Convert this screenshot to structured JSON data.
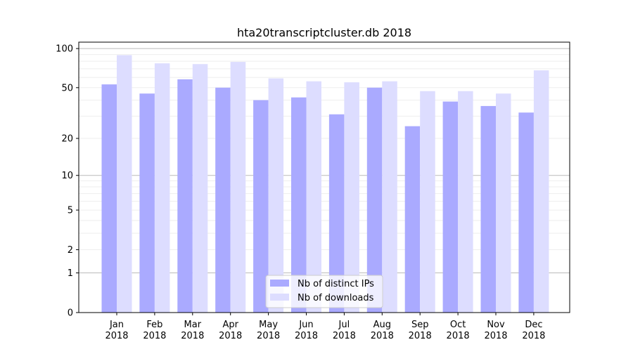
{
  "chart_data": {
    "type": "bar",
    "title": "hta20transcriptcluster.db 2018",
    "xlabel": "",
    "ylabel": "",
    "yscale": "log(1+x)",
    "ylim": [
      0,
      112
    ],
    "yticks": [
      0,
      1,
      2,
      5,
      10,
      20,
      50,
      100
    ],
    "grid": true,
    "legend_placement": "lower center",
    "categories": [
      "Jan\n2018",
      "Feb\n2018",
      "Mar\n2018",
      "Apr\n2018",
      "May\n2018",
      "Jun\n2018",
      "Jul\n2018",
      "Aug\n2018",
      "Sep\n2018",
      "Oct\n2018",
      "Nov\n2018",
      "Dec\n2018"
    ],
    "series": [
      {
        "name": "Nb of distinct IPs",
        "color": "#aaaaff",
        "values": [
          53,
          45,
          58,
          50,
          40,
          42,
          31,
          50,
          25,
          39,
          36,
          32
        ]
      },
      {
        "name": "Nb of downloads",
        "color": "#ddddff",
        "values": [
          89,
          77,
          76,
          79,
          59,
          56,
          55,
          56,
          47,
          47,
          45,
          68
        ]
      }
    ]
  }
}
